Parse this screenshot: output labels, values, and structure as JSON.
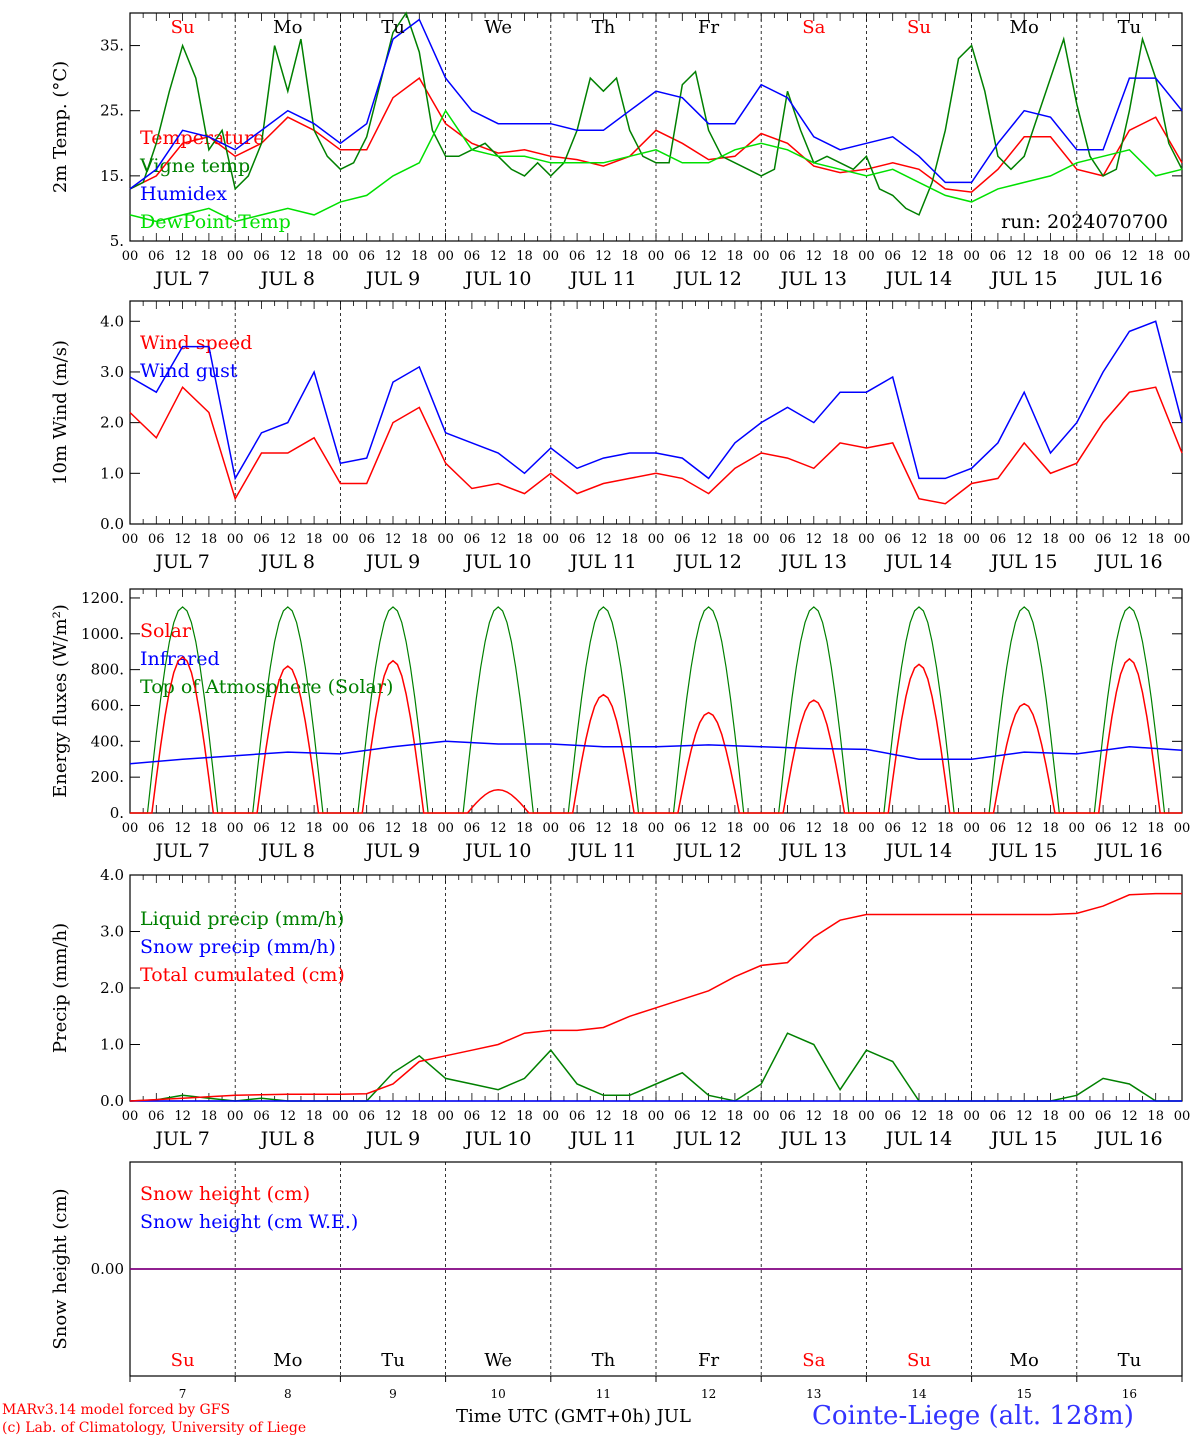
{
  "run_label": "run: 2024070700",
  "days": [
    "7",
    "8",
    "9",
    "10",
    "11",
    "12",
    "13",
    "14",
    "15",
    "16"
  ],
  "day_names": [
    "Su",
    "Mo",
    "Tu",
    "We",
    "Th",
    "Fr",
    "Sa",
    "Su",
    "Mo",
    "Tu"
  ],
  "weekend_flags": [
    true,
    false,
    false,
    false,
    false,
    false,
    true,
    true,
    false,
    false
  ],
  "month": "JUL",
  "hour_labels": [
    "00",
    "06",
    "12",
    "18"
  ],
  "final_hour_label": "00",
  "footer": {
    "line1": "MARv3.14 model forced by GFS",
    "line2": "(c) Lab. of Climatology, University of Liege",
    "xlabel": "Time UTC (GMT+0h) JUL",
    "title": "Cointe-Liege (alt. 128m)"
  },
  "colors": {
    "red": "#ff0000",
    "green": "#008000",
    "blue": "#0000ff",
    "lightgreen": "#00e000",
    "purple": "#800080"
  },
  "chart_data": [
    {
      "type": "line",
      "ylabel": "2m Temp. (°C)",
      "ylim": [
        5,
        40
      ],
      "yticks": [
        5,
        15,
        25,
        35
      ],
      "ytick_labels": [
        "5.",
        "15.",
        "25.",
        "35."
      ],
      "x_unit": "hours since JUL 7 00 UTC",
      "legend": [
        "Temperature",
        "Vigne temp",
        "Humidex",
        "DewPoint Temp"
      ],
      "series": [
        {
          "name": "Temperature",
          "color": "red",
          "x": [
            0,
            6,
            12,
            18,
            24,
            30,
            36,
            42,
            48,
            54,
            60,
            66,
            72,
            78,
            84,
            90,
            96,
            102,
            108,
            114,
            120,
            126,
            132,
            138,
            144,
            150,
            156,
            162,
            168,
            174,
            180,
            186,
            192,
            198,
            204,
            210,
            216,
            222,
            228,
            234,
            240
          ],
          "y": [
            13,
            15,
            20,
            21,
            18,
            20,
            24,
            22,
            19,
            19,
            27,
            30,
            23,
            20,
            18.5,
            19,
            18,
            17.5,
            16.5,
            18,
            22,
            20,
            17.5,
            18,
            21.5,
            20,
            16.5,
            15.5,
            16,
            17,
            16,
            13,
            12.5,
            16,
            21,
            21,
            16,
            15,
            22,
            24,
            17
          ]
        },
        {
          "name": "Vigne temp",
          "color": "green",
          "x": [
            0,
            3,
            6,
            9,
            12,
            15,
            18,
            21,
            24,
            27,
            30,
            33,
            36,
            39,
            42,
            45,
            48,
            51,
            54,
            57,
            60,
            63,
            66,
            69,
            72,
            75,
            78,
            81,
            84,
            87,
            90,
            93,
            96,
            99,
            102,
            105,
            108,
            111,
            114,
            117,
            120,
            123,
            126,
            129,
            132,
            135,
            138,
            141,
            144,
            147,
            150,
            153,
            156,
            159,
            162,
            165,
            168,
            171,
            174,
            177,
            180,
            183,
            186,
            189,
            192,
            195,
            198,
            201,
            204,
            207,
            210,
            213,
            216,
            219,
            222,
            225,
            228,
            231,
            234,
            237,
            240
          ],
          "y": [
            13,
            14,
            20,
            28,
            35,
            30,
            19,
            22,
            13,
            15,
            20,
            35,
            28,
            36,
            22,
            18,
            16,
            17,
            21,
            29,
            37,
            40,
            34,
            22,
            18,
            18,
            19,
            20,
            18,
            16,
            15,
            17,
            15,
            17,
            22,
            30,
            28,
            30,
            22,
            18,
            17,
            17,
            29,
            31,
            22,
            18,
            17,
            16,
            15,
            16,
            28,
            22,
            17,
            18,
            17,
            16,
            18,
            13,
            12,
            10,
            9,
            14,
            22,
            33,
            35,
            28,
            18,
            16,
            18,
            24,
            30,
            36,
            26,
            18,
            15,
            16,
            25,
            36,
            30,
            20,
            16
          ]
        },
        {
          "name": "Humidex",
          "color": "blue",
          "x": [
            0,
            6,
            12,
            18,
            24,
            30,
            36,
            42,
            48,
            54,
            60,
            66,
            72,
            78,
            84,
            90,
            96,
            102,
            108,
            114,
            120,
            126,
            132,
            138,
            144,
            150,
            156,
            162,
            168,
            174,
            180,
            186,
            192,
            198,
            204,
            210,
            216,
            222,
            228,
            234,
            240
          ],
          "y": [
            13,
            16,
            22,
            21,
            19,
            22,
            25,
            23,
            20,
            23,
            36,
            39,
            30,
            25,
            23,
            23,
            23,
            22,
            22,
            25,
            28,
            27,
            23,
            23,
            29,
            27,
            21,
            19,
            20,
            21,
            18,
            14,
            14,
            20,
            25,
            24,
            19,
            19,
            30,
            30,
            25
          ]
        },
        {
          "name": "DewPoint Temp",
          "color": "lightgreen",
          "x": [
            0,
            6,
            12,
            18,
            24,
            30,
            36,
            42,
            48,
            54,
            60,
            66,
            72,
            78,
            84,
            90,
            96,
            102,
            108,
            114,
            120,
            126,
            132,
            138,
            144,
            150,
            156,
            162,
            168,
            174,
            180,
            186,
            192,
            198,
            204,
            210,
            216,
            222,
            228,
            234,
            240
          ],
          "y": [
            9,
            8,
            9,
            10,
            8,
            9,
            10,
            9,
            11,
            12,
            15,
            17,
            25,
            19,
            18,
            18,
            17,
            17,
            17,
            18,
            19,
            17,
            17,
            19,
            20,
            19,
            17,
            16,
            15,
            16,
            14,
            12,
            11,
            13,
            14,
            15,
            17,
            18,
            19,
            15,
            16
          ]
        }
      ]
    },
    {
      "type": "line",
      "ylabel": "10m Wind (m/s)",
      "ylim": [
        0,
        4.4
      ],
      "yticks": [
        0,
        1,
        2,
        3,
        4
      ],
      "ytick_labels": [
        "0.0",
        "1.0",
        "2.0",
        "3.0",
        "4.0"
      ],
      "legend": [
        "Wind speed",
        "Wind gust"
      ],
      "series": [
        {
          "name": "Wind speed",
          "color": "red",
          "x": [
            0,
            6,
            12,
            18,
            24,
            30,
            36,
            42,
            48,
            54,
            60,
            66,
            72,
            78,
            84,
            90,
            96,
            102,
            108,
            114,
            120,
            126,
            132,
            138,
            144,
            150,
            156,
            162,
            168,
            174,
            180,
            186,
            192,
            198,
            204,
            210,
            216,
            222,
            228,
            234,
            240
          ],
          "y": [
            2.2,
            1.7,
            2.7,
            2.2,
            0.5,
            1.4,
            1.4,
            1.7,
            0.8,
            0.8,
            2.0,
            2.3,
            1.2,
            0.7,
            0.8,
            0.6,
            1.0,
            0.6,
            0.8,
            0.9,
            1.0,
            0.9,
            0.6,
            1.1,
            1.4,
            1.3,
            1.1,
            1.6,
            1.5,
            1.6,
            0.5,
            0.4,
            0.8,
            0.9,
            1.6,
            1.0,
            1.2,
            2.0,
            2.6,
            2.7,
            1.4
          ]
        },
        {
          "name": "Wind gust",
          "color": "blue",
          "x": [
            0,
            6,
            12,
            18,
            24,
            30,
            36,
            42,
            48,
            54,
            60,
            66,
            72,
            78,
            84,
            90,
            96,
            102,
            108,
            114,
            120,
            126,
            132,
            138,
            144,
            150,
            156,
            162,
            168,
            174,
            180,
            186,
            192,
            198,
            204,
            210,
            216,
            222,
            228,
            234,
            240
          ],
          "y": [
            2.9,
            2.6,
            3.5,
            3.5,
            0.9,
            1.8,
            2.0,
            3.0,
            1.2,
            1.3,
            2.8,
            3.1,
            1.8,
            1.6,
            1.4,
            1.0,
            1.5,
            1.1,
            1.3,
            1.4,
            1.4,
            1.3,
            0.9,
            1.6,
            2.0,
            2.3,
            2.0,
            2.6,
            2.6,
            2.9,
            0.9,
            0.9,
            1.1,
            1.6,
            2.6,
            1.4,
            2.0,
            3.0,
            3.8,
            4.0,
            2.0
          ]
        }
      ]
    },
    {
      "type": "line",
      "ylabel": "Energy fluxes (W/m²)",
      "ylim": [
        0,
        1250
      ],
      "yticks": [
        0,
        200,
        400,
        600,
        800,
        1000,
        1200
      ],
      "ytick_labels": [
        "0.",
        "200.",
        "400.",
        "600.",
        "800.",
        "1000.",
        "1200."
      ],
      "legend": [
        "Solar",
        "Infrared",
        "Top of Atmosphere (Solar)"
      ],
      "toa_peak": 1150,
      "solar_peaks": [
        870,
        820,
        850,
        130,
        660,
        560,
        630,
        830,
        610,
        860
      ],
      "series_meta": [
        {
          "name": "Solar",
          "color": "red"
        },
        {
          "name": "Infrared",
          "color": "blue"
        },
        {
          "name": "Top of Atmosphere (Solar)",
          "color": "green"
        }
      ],
      "infrared": {
        "x": [
          0,
          12,
          24,
          36,
          48,
          60,
          72,
          84,
          96,
          108,
          120,
          132,
          144,
          156,
          168,
          180,
          192,
          204,
          216,
          228,
          240
        ],
        "y": [
          275,
          300,
          320,
          340,
          330,
          370,
          400,
          385,
          385,
          370,
          370,
          380,
          370,
          360,
          355,
          300,
          300,
          340,
          330,
          370,
          350
        ]
      }
    },
    {
      "type": "line",
      "ylabel": "Precip (mm/h)",
      "ylim": [
        0,
        4.0
      ],
      "yticks": [
        0,
        1,
        2,
        3,
        4
      ],
      "ytick_labels": [
        "0.0",
        "1.0",
        "2.0",
        "3.0",
        "4.0"
      ],
      "legend": [
        "Liquid precip (mm/h)",
        "Snow precip (mm/h)",
        "Total cumulated (cm)"
      ],
      "series": [
        {
          "name": "Liquid precip (mm/h)",
          "color": "green",
          "x": [
            0,
            6,
            12,
            18,
            24,
            30,
            36,
            42,
            48,
            54,
            60,
            66,
            72,
            78,
            84,
            90,
            96,
            102,
            108,
            114,
            120,
            126,
            132,
            138,
            144,
            150,
            156,
            162,
            168,
            174,
            180,
            186,
            192,
            198,
            204,
            210,
            216,
            222,
            228,
            234,
            240
          ],
          "y": [
            0,
            0.02,
            0.1,
            0.05,
            0,
            0.05,
            0,
            0,
            0,
            0,
            0.5,
            0.8,
            0.4,
            0.3,
            0.2,
            0.4,
            0.9,
            0.3,
            0.1,
            0.1,
            0.3,
            0.5,
            0.1,
            0,
            0.3,
            1.2,
            1.0,
            0.2,
            0.9,
            0.7,
            0,
            0,
            0,
            0,
            0,
            0,
            0.1,
            0.4,
            0.3,
            0,
            0
          ]
        },
        {
          "name": "Snow precip (mm/h)",
          "color": "blue",
          "x": [
            0,
            240
          ],
          "y": [
            0,
            0
          ]
        },
        {
          "name": "Total cumulated (cm)",
          "color": "red",
          "x": [
            0,
            12,
            24,
            36,
            48,
            54,
            60,
            66,
            72,
            78,
            84,
            90,
            96,
            102,
            108,
            114,
            120,
            126,
            132,
            138,
            144,
            150,
            156,
            162,
            168,
            174,
            180,
            186,
            192,
            198,
            204,
            210,
            216,
            222,
            228,
            234,
            240
          ],
          "y": [
            0,
            0.05,
            0.1,
            0.12,
            0.12,
            0.13,
            0.3,
            0.7,
            0.8,
            0.9,
            1.0,
            1.2,
            1.25,
            1.25,
            1.3,
            1.5,
            1.65,
            1.8,
            1.95,
            2.2,
            2.4,
            2.45,
            2.9,
            3.2,
            3.3,
            3.3,
            3.3,
            3.3,
            3.3,
            3.3,
            3.3,
            3.3,
            3.32,
            3.45,
            3.65,
            3.67,
            3.67
          ]
        }
      ]
    },
    {
      "type": "line",
      "ylabel": "Snow height (cm)",
      "ylim": [
        -1,
        1
      ],
      "yticks": [
        0
      ],
      "ytick_labels": [
        "0.00"
      ],
      "legend": [
        "Snow height (cm)",
        "Snow height (cm W.E.)"
      ],
      "series": [
        {
          "name": "Snow height (cm)",
          "color": "red",
          "x": [
            0,
            240
          ],
          "y": [
            0,
            0
          ]
        },
        {
          "name": "Snow height (cm W.E.)",
          "color": "blue",
          "x": [
            0,
            240
          ],
          "y": [
            0,
            0
          ]
        }
      ]
    }
  ]
}
